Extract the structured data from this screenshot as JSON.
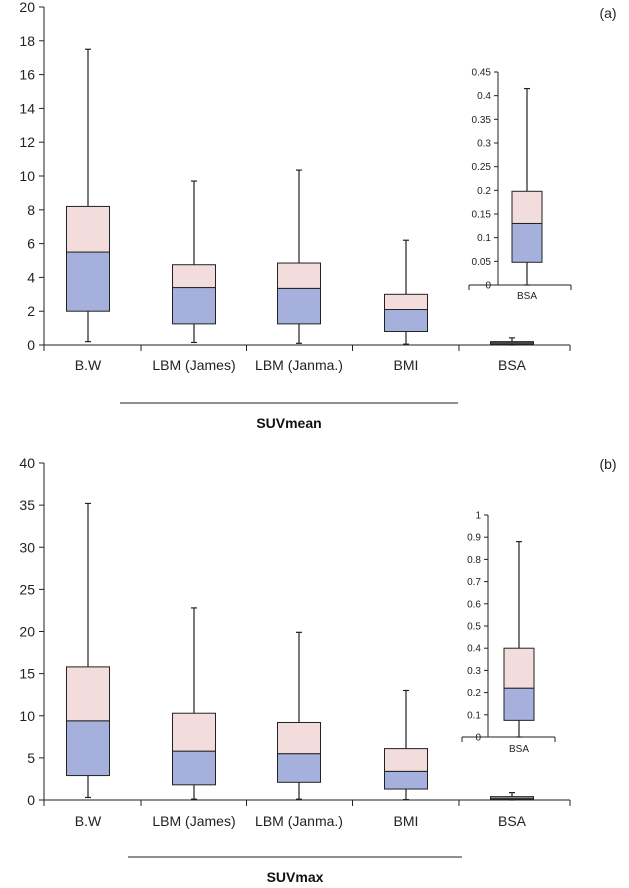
{
  "colors": {
    "upper_box": "#f2dcdc",
    "lower_box": "#a5b0dc",
    "stroke": "#222222"
  },
  "chart_data": [
    {
      "type": "boxplot",
      "panel_label": "(a)",
      "group_label": "SUVmean",
      "ylim": [
        0,
        20
      ],
      "yticks": [
        0,
        2,
        4,
        6,
        8,
        10,
        12,
        14,
        16,
        18,
        20
      ],
      "categories": [
        "B.W",
        "LBM (James)",
        "LBM (Janma.)",
        "BMI",
        "BSA"
      ],
      "boxes": [
        {
          "min": 0.2,
          "q1": 2.0,
          "median": 5.5,
          "q3": 8.2,
          "max": 17.5
        },
        {
          "min": 0.15,
          "q1": 1.25,
          "median": 3.4,
          "q3": 4.75,
          "max": 9.7
        },
        {
          "min": 0.1,
          "q1": 1.25,
          "median": 3.35,
          "q3": 4.85,
          "max": 10.35
        },
        {
          "min": 0.05,
          "q1": 0.8,
          "median": 2.1,
          "q3": 3.0,
          "max": 6.2
        },
        {
          "min": 0.0,
          "q1": 0.05,
          "median": 0.13,
          "q3": 0.2,
          "max": 0.42
        }
      ],
      "inset": {
        "category": "BSA",
        "ylim": [
          0,
          0.45
        ],
        "yticks": [
          0,
          0.05,
          0.1,
          0.15,
          0.2,
          0.25,
          0.3,
          0.35,
          0.4,
          0.45
        ],
        "box": {
          "min": 0.0,
          "q1": 0.048,
          "median": 0.13,
          "q3": 0.198,
          "max": 0.415
        }
      }
    },
    {
      "type": "boxplot",
      "panel_label": "(b)",
      "group_label": "SUVmax",
      "ylim": [
        0,
        40
      ],
      "yticks": [
        0,
        5,
        10,
        15,
        20,
        25,
        30,
        35,
        40
      ],
      "categories": [
        "B.W",
        "LBM (James)",
        "LBM (Janma.)",
        "BMI",
        "BSA"
      ],
      "boxes": [
        {
          "min": 0.3,
          "q1": 2.9,
          "median": 9.4,
          "q3": 15.8,
          "max": 35.2
        },
        {
          "min": 0.1,
          "q1": 1.8,
          "median": 5.8,
          "q3": 10.3,
          "max": 22.8
        },
        {
          "min": 0.1,
          "q1": 2.1,
          "median": 5.5,
          "q3": 9.2,
          "max": 19.9
        },
        {
          "min": 0.05,
          "q1": 1.3,
          "median": 3.4,
          "q3": 6.1,
          "max": 13.0
        },
        {
          "min": 0.0,
          "q1": 0.07,
          "median": 0.22,
          "q3": 0.4,
          "max": 0.88
        }
      ],
      "inset": {
        "category": "BSA",
        "ylim": [
          0,
          1
        ],
        "yticks": [
          0,
          0.1,
          0.2,
          0.3,
          0.4,
          0.5,
          0.6,
          0.7,
          0.8,
          0.9,
          1
        ],
        "box": {
          "min": 0.0,
          "q1": 0.075,
          "median": 0.22,
          "q3": 0.4,
          "max": 0.88
        }
      }
    }
  ]
}
